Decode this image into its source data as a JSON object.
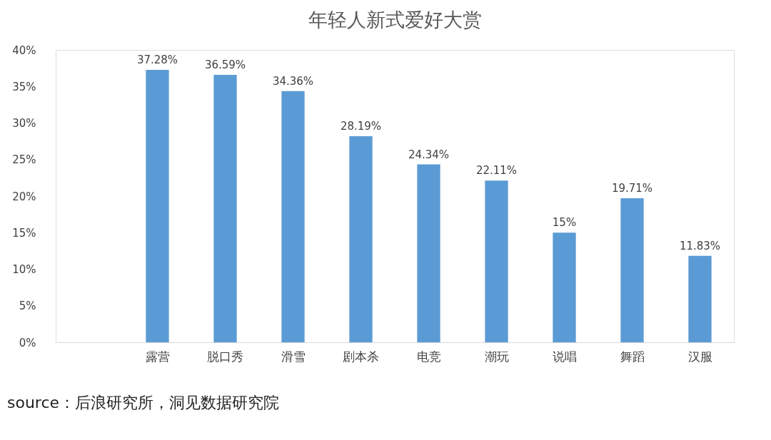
{
  "chart_data": {
    "type": "bar",
    "title": "年轻人新式爱好大赏",
    "categories": [
      null,
      "露营",
      "脱口秀",
      "滑雪",
      "剧本杀",
      "电竞",
      "潮玩",
      "说唱",
      "舞蹈",
      "汉服"
    ],
    "values": [
      null,
      37.28,
      36.59,
      34.36,
      28.19,
      24.34,
      22.11,
      15,
      19.71,
      11.83
    ],
    "value_labels": [
      null,
      "37.28%",
      "36.59%",
      "34.36%",
      "28.19%",
      "24.34%",
      "22.11%",
      "15%",
      "19.71%",
      "11.83%"
    ],
    "color": "#5b9bd5",
    "ylim": [
      0,
      40
    ],
    "yticks": [
      {
        "value": 0,
        "label": "0%"
      },
      {
        "value": 5,
        "label": "5%"
      },
      {
        "value": 10,
        "label": "10%"
      },
      {
        "value": 15,
        "label": "15%"
      },
      {
        "value": 20,
        "label": "20%"
      },
      {
        "value": 25,
        "label": "25%"
      },
      {
        "value": 30,
        "label": "30%"
      },
      {
        "value": 35,
        "label": "35%"
      },
      {
        "value": 40,
        "label": "40%"
      }
    ],
    "grid": false,
    "annotations": [
      "source：后浪研究所，洞见数据研究院"
    ]
  }
}
